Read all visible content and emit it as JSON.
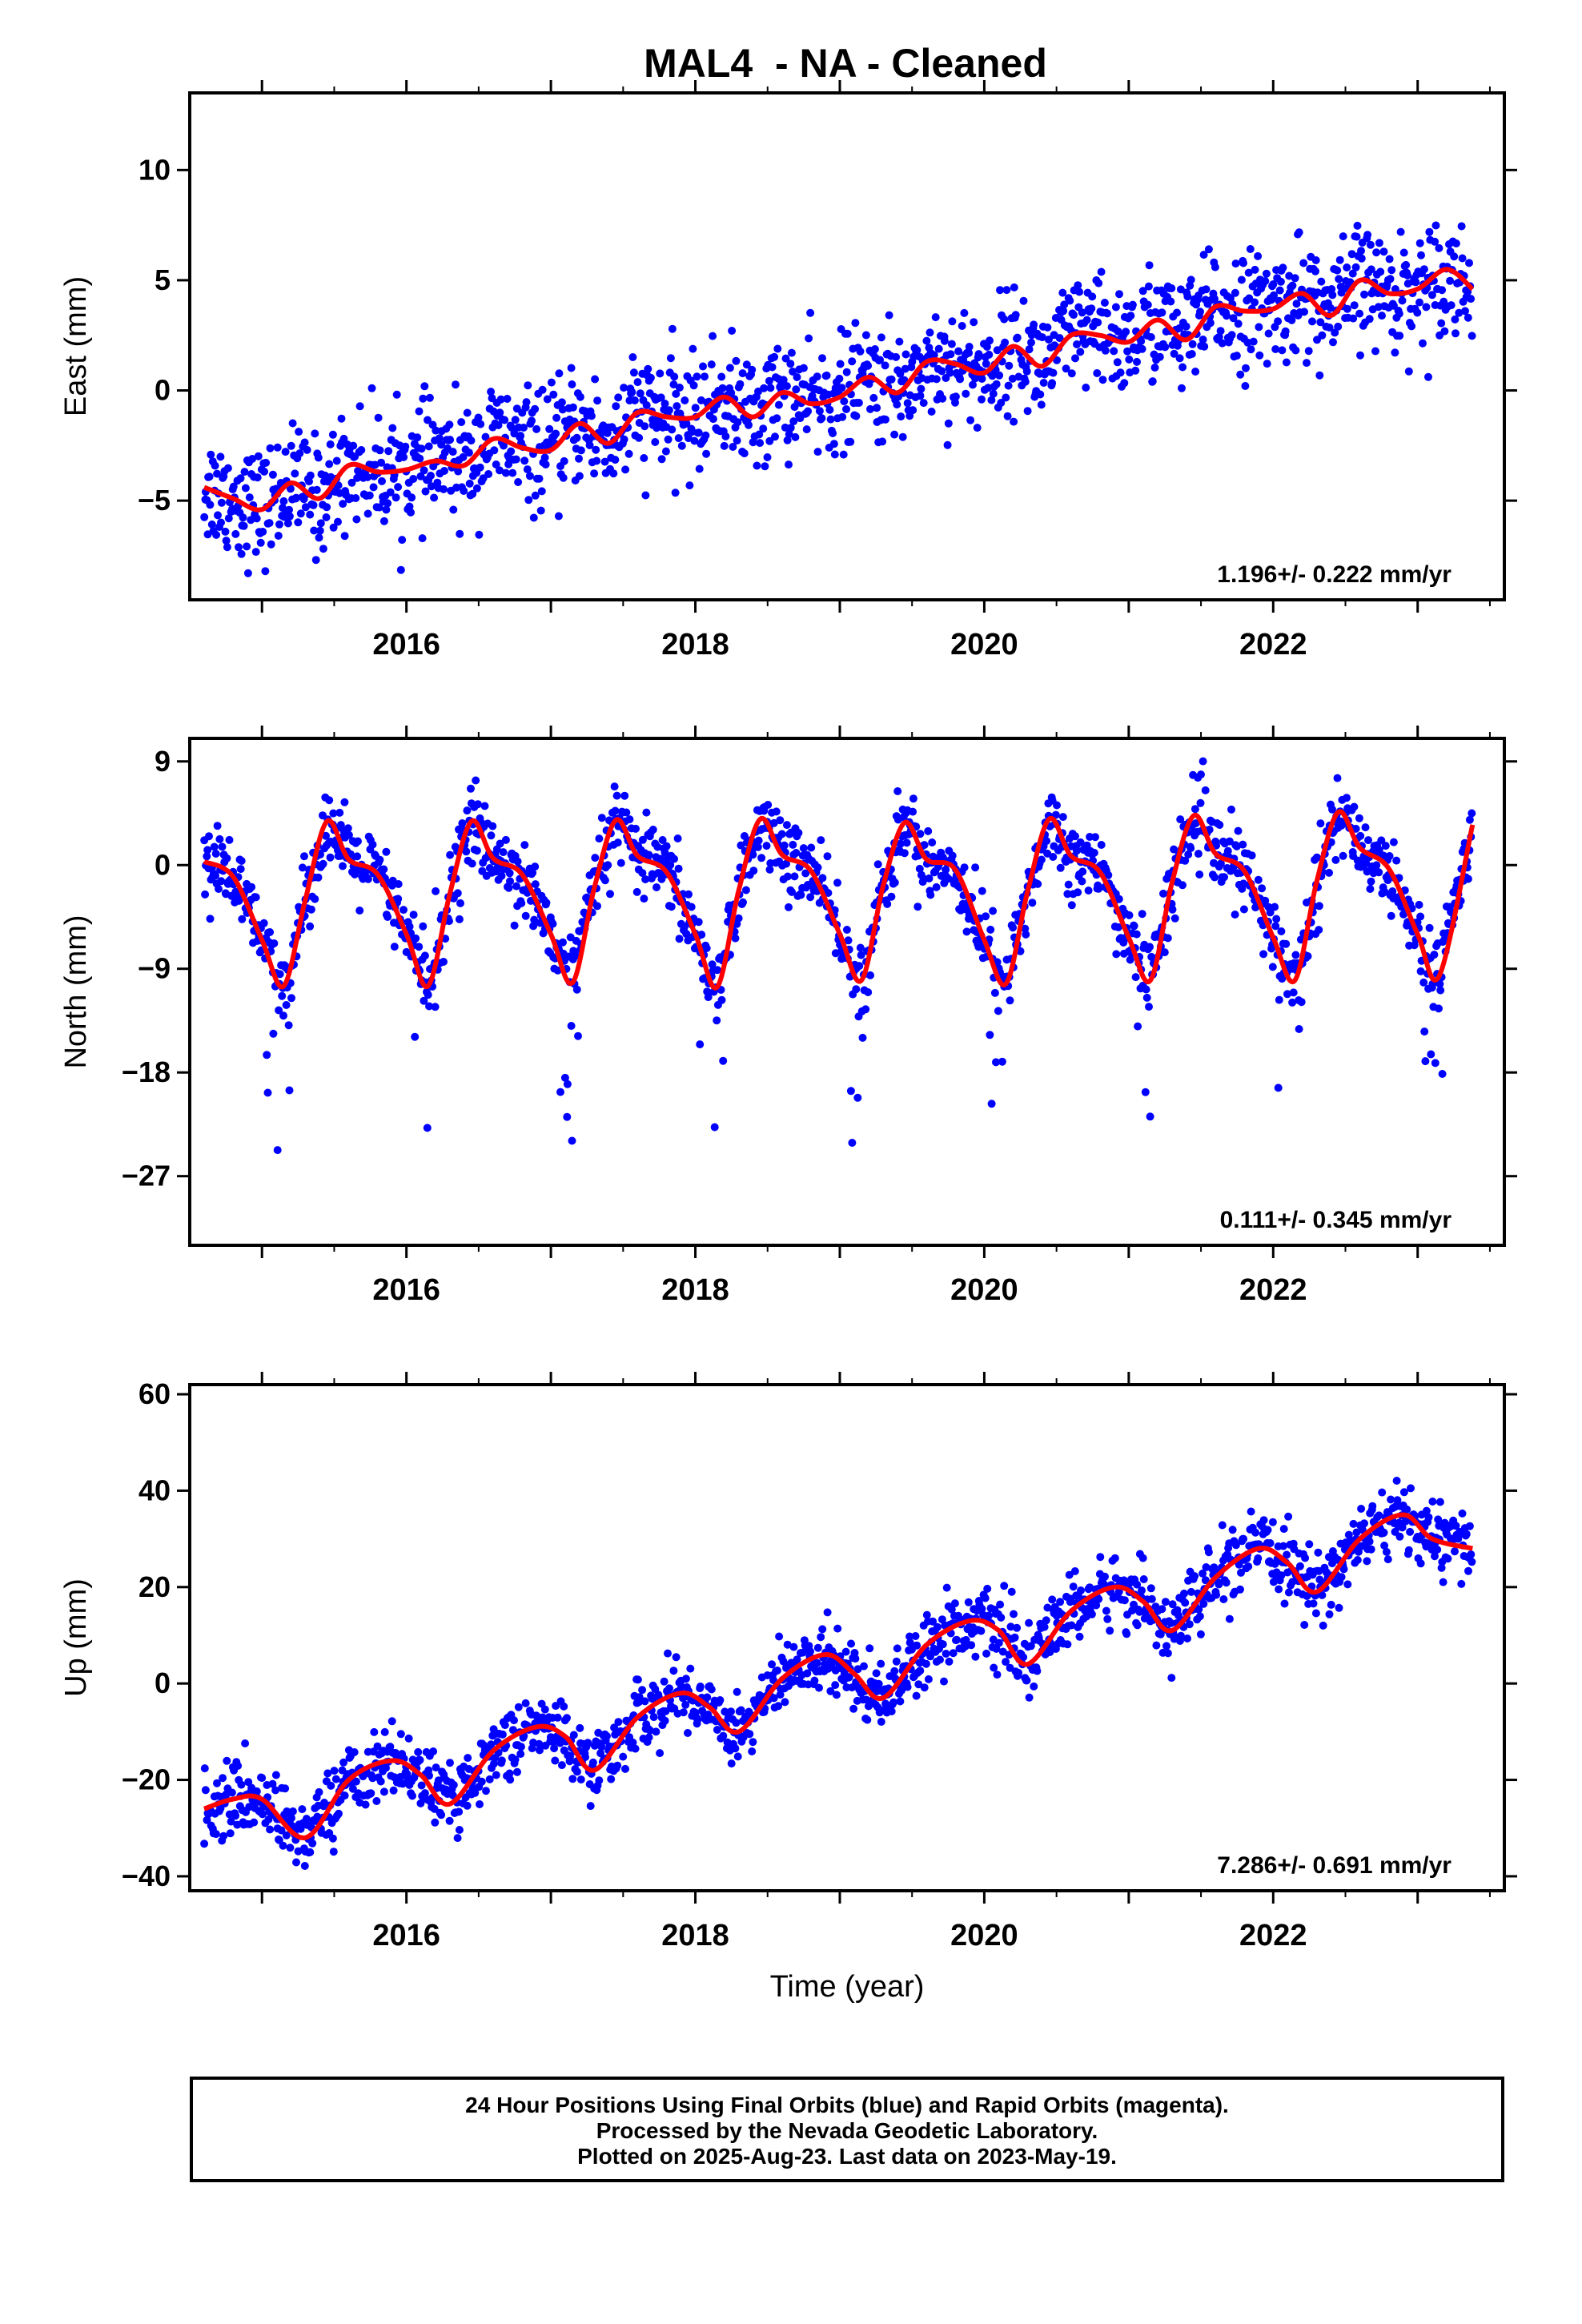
{
  "title": "MAL4  - NA - Cleaned",
  "colors": {
    "data_points": "#0000ff",
    "model_line": "#ff0000",
    "axes": "#000000"
  },
  "chart_data": [
    {
      "type": "scatter",
      "component": "east",
      "ylabel": "East (mm)",
      "ylim": [
        -9.5,
        13.5
      ],
      "yticks": [
        -5,
        0,
        5,
        10
      ],
      "xlim": [
        2014.5,
        2023.6
      ],
      "xticks": [
        2016,
        2018,
        2020,
        2022
      ],
      "rate_label": "1.196+/- 0.222 mm/yr",
      "series": [
        {
          "x": [
            2014.6,
            2014.8,
            2015.0,
            2015.2,
            2015.4,
            2015.6,
            2015.8,
            2016.0,
            2016.2,
            2016.4,
            2016.6,
            2016.8,
            2017.0,
            2017.2,
            2017.4,
            2017.6,
            2017.8,
            2018.0,
            2018.2,
            2018.4,
            2018.6,
            2018.8,
            2019.0,
            2019.2,
            2019.4,
            2019.6,
            2019.8,
            2020.0,
            2020.2,
            2020.4,
            2020.6,
            2020.8,
            2021.0,
            2021.2,
            2021.4,
            2021.6,
            2021.8,
            2022.0,
            2022.2,
            2022.4,
            2022.6,
            2022.8,
            2023.0,
            2023.2,
            2023.38
          ],
          "values": [
            -4.4,
            -4.9,
            -5.4,
            -4.2,
            -4.9,
            -3.4,
            -3.7,
            -3.6,
            -3.2,
            -3.4,
            -2.2,
            -2.6,
            -2.7,
            -1.5,
            -2.4,
            -1.0,
            -1.2,
            -1.2,
            -0.3,
            -1.2,
            -0.1,
            -0.6,
            -0.3,
            0.6,
            -0.1,
            1.3,
            1.2,
            0.8,
            2.0,
            1.1,
            2.5,
            2.5,
            2.2,
            3.2,
            2.3,
            3.8,
            3.6,
            3.7,
            4.4,
            3.4,
            5.0,
            4.4,
            4.6,
            5.5,
            4.6
          ],
          "spread": 1.3
        }
      ]
    },
    {
      "type": "scatter",
      "component": "north",
      "ylabel": "North (mm)",
      "ylim": [
        -33,
        11
      ],
      "yticks": [
        -27,
        -18,
        -9,
        0,
        9
      ],
      "xlim": [
        2014.5,
        2023.6
      ],
      "xticks": [
        2016,
        2018,
        2020,
        2022
      ],
      "rate_label": "0.111+/- 0.345 mm/yr",
      "series": [
        {
          "x": [
            2014.6,
            2014.8,
            2015.0,
            2015.15,
            2015.3,
            2015.45,
            2015.6,
            2015.8,
            2016.0,
            2016.15,
            2016.3,
            2016.45,
            2016.6,
            2016.8,
            2017.0,
            2017.15,
            2017.3,
            2017.45,
            2017.6,
            2017.8,
            2018.0,
            2018.15,
            2018.3,
            2018.45,
            2018.6,
            2018.8,
            2019.0,
            2019.15,
            2019.3,
            2019.45,
            2019.6,
            2019.8,
            2020.0,
            2020.15,
            2020.3,
            2020.45,
            2020.6,
            2020.8,
            2021.0,
            2021.15,
            2021.3,
            2021.45,
            2021.6,
            2021.8,
            2022.0,
            2022.15,
            2022.3,
            2022.45,
            2022.6,
            2022.8,
            2023.0,
            2023.15,
            2023.38
          ],
          "values": [
            0.3,
            -1.0,
            -6.5,
            -10.5,
            -3.0,
            3.8,
            0.5,
            -0.8,
            -6.0,
            -10.5,
            -2.5,
            3.8,
            0.6,
            -0.8,
            -6.0,
            -10.2,
            -2.0,
            3.9,
            0.8,
            -0.6,
            -6.0,
            -10.6,
            -2.2,
            4.0,
            0.9,
            -0.5,
            -6.0,
            -10.0,
            -1.8,
            3.7,
            0.5,
            -0.4,
            -6.5,
            -10.3,
            -2.3,
            4.0,
            0.8,
            -0.6,
            -6.3,
            -10.0,
            -1.5,
            4.3,
            1.0,
            -0.5,
            -6.3,
            -10.0,
            -1.5,
            4.6,
            1.5,
            -0.3,
            -6.0,
            -9.6,
            3.5
          ],
          "spread": 1.6
        }
      ]
    },
    {
      "type": "scatter",
      "component": "up",
      "ylabel": "Up (mm)",
      "xlabel": "Time (year)",
      "ylim": [
        -43,
        62
      ],
      "yticks": [
        -40,
        -20,
        0,
        20,
        40,
        60
      ],
      "xlim": [
        2014.5,
        2023.6
      ],
      "xticks": [
        2016,
        2018,
        2020,
        2022
      ],
      "rate_label": "7.286+/- 0.691 mm/yr",
      "series": [
        {
          "x": [
            2014.6,
            2014.8,
            2015.0,
            2015.3,
            2015.6,
            2015.9,
            2016.1,
            2016.3,
            2016.6,
            2016.9,
            2017.1,
            2017.3,
            2017.6,
            2017.9,
            2018.1,
            2018.3,
            2018.6,
            2018.9,
            2019.1,
            2019.3,
            2019.6,
            2019.9,
            2020.1,
            2020.3,
            2020.6,
            2020.9,
            2021.1,
            2021.3,
            2021.6,
            2021.9,
            2022.1,
            2022.3,
            2022.6,
            2022.9,
            2023.1,
            2023.38
          ],
          "values": [
            -26,
            -24,
            -24,
            -32,
            -20,
            -16,
            -19,
            -25,
            -14,
            -9,
            -11,
            -18,
            -7,
            -2,
            -5,
            -10,
            1,
            6,
            2,
            -3,
            8,
            13,
            11,
            4,
            15,
            20,
            17,
            11,
            22,
            28,
            25,
            19,
            30,
            35,
            30,
            28
          ],
          "spread": 3.5
        }
      ]
    }
  ],
  "footer": {
    "line1": "24 Hour Positions Using Final Orbits (blue) and Rapid Orbits (magenta).",
    "line2": "Processed by the Nevada Geodetic Laboratory.",
    "line3": "Plotted on 2025-Aug-23. Last data on 2023-May-19."
  }
}
